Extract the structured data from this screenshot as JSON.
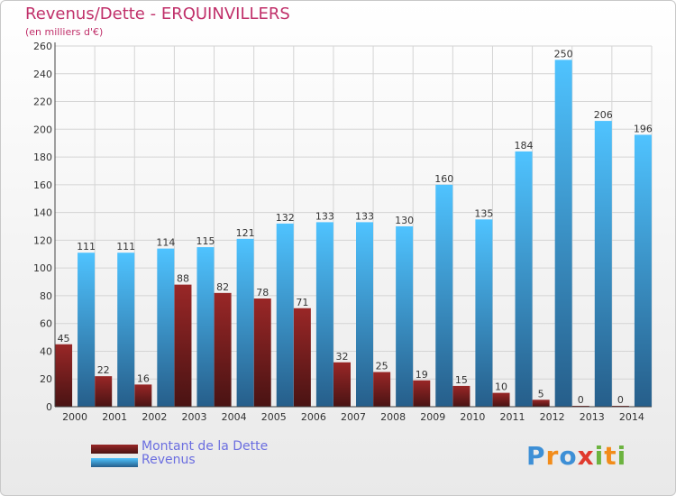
{
  "chart_data": {
    "type": "bar",
    "title": "Revenus/Dette - ERQUINVILLERS",
    "subtitle": "(en milliers d'€)",
    "categories": [
      "2000",
      "2001",
      "2002",
      "2003",
      "2004",
      "2005",
      "2006",
      "2007",
      "2008",
      "2009",
      "2010",
      "2011",
      "2012",
      "2013",
      "2014"
    ],
    "series": [
      {
        "name": "Montant de la Dette",
        "color": "#7a1f1f",
        "values": [
          45,
          22,
          16,
          88,
          82,
          78,
          71,
          32,
          25,
          19,
          15,
          10,
          5,
          0,
          0
        ]
      },
      {
        "name": "Revenus",
        "color": "#3f9ce6",
        "values": [
          111,
          111,
          114,
          115,
          121,
          132,
          133,
          133,
          130,
          160,
          135,
          184,
          250,
          206,
          196
        ]
      }
    ],
    "ylim": [
      0,
      260
    ],
    "yticks": [
      0,
      20,
      40,
      60,
      80,
      100,
      120,
      140,
      160,
      180,
      200,
      220,
      240,
      260
    ],
    "grid": true,
    "legend_position": "bottom-left"
  },
  "logo": {
    "letters": [
      "P",
      "r",
      "o",
      "x",
      "i",
      "t",
      "i"
    ],
    "colors": [
      "#3d8fd6",
      "#f28c1a",
      "#3d8fd6",
      "#e03a2e",
      "#6cb33f",
      "#f28c1a",
      "#6cb33f"
    ]
  }
}
